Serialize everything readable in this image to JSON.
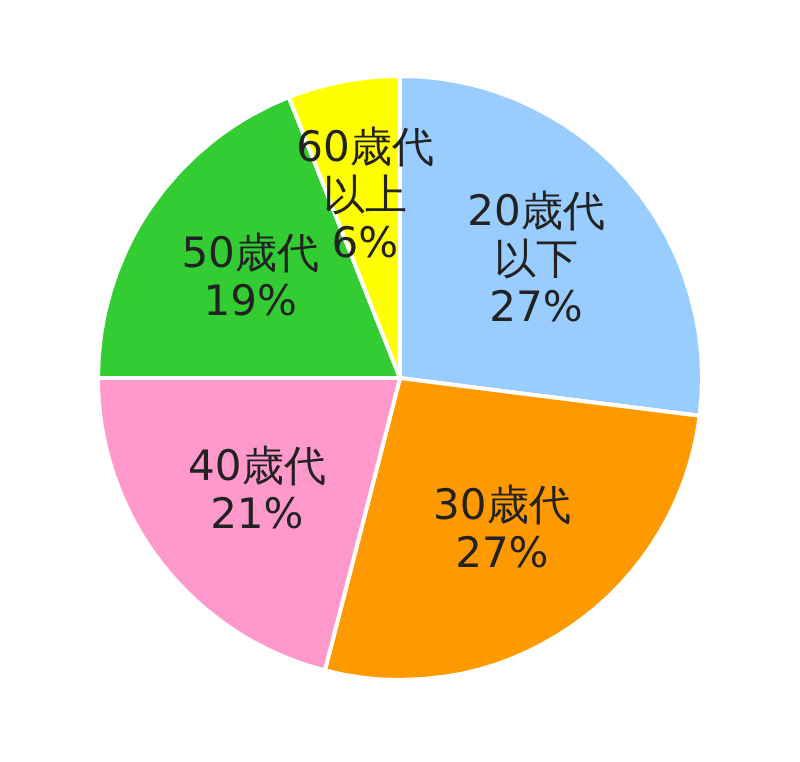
{
  "chart_data": {
    "type": "pie",
    "categories": [
      "20歳代以下",
      "30歳代",
      "40歳代",
      "50歳代",
      "60歳代以上"
    ],
    "values": [
      27,
      27,
      21,
      19,
      6
    ],
    "colors": [
      "#99ccff",
      "#ff9900",
      "#ff99cc",
      "#33cc33",
      "#ffff00"
    ],
    "value_labels": [
      "27%",
      "27%",
      "21%",
      "19%",
      "6%"
    ]
  }
}
